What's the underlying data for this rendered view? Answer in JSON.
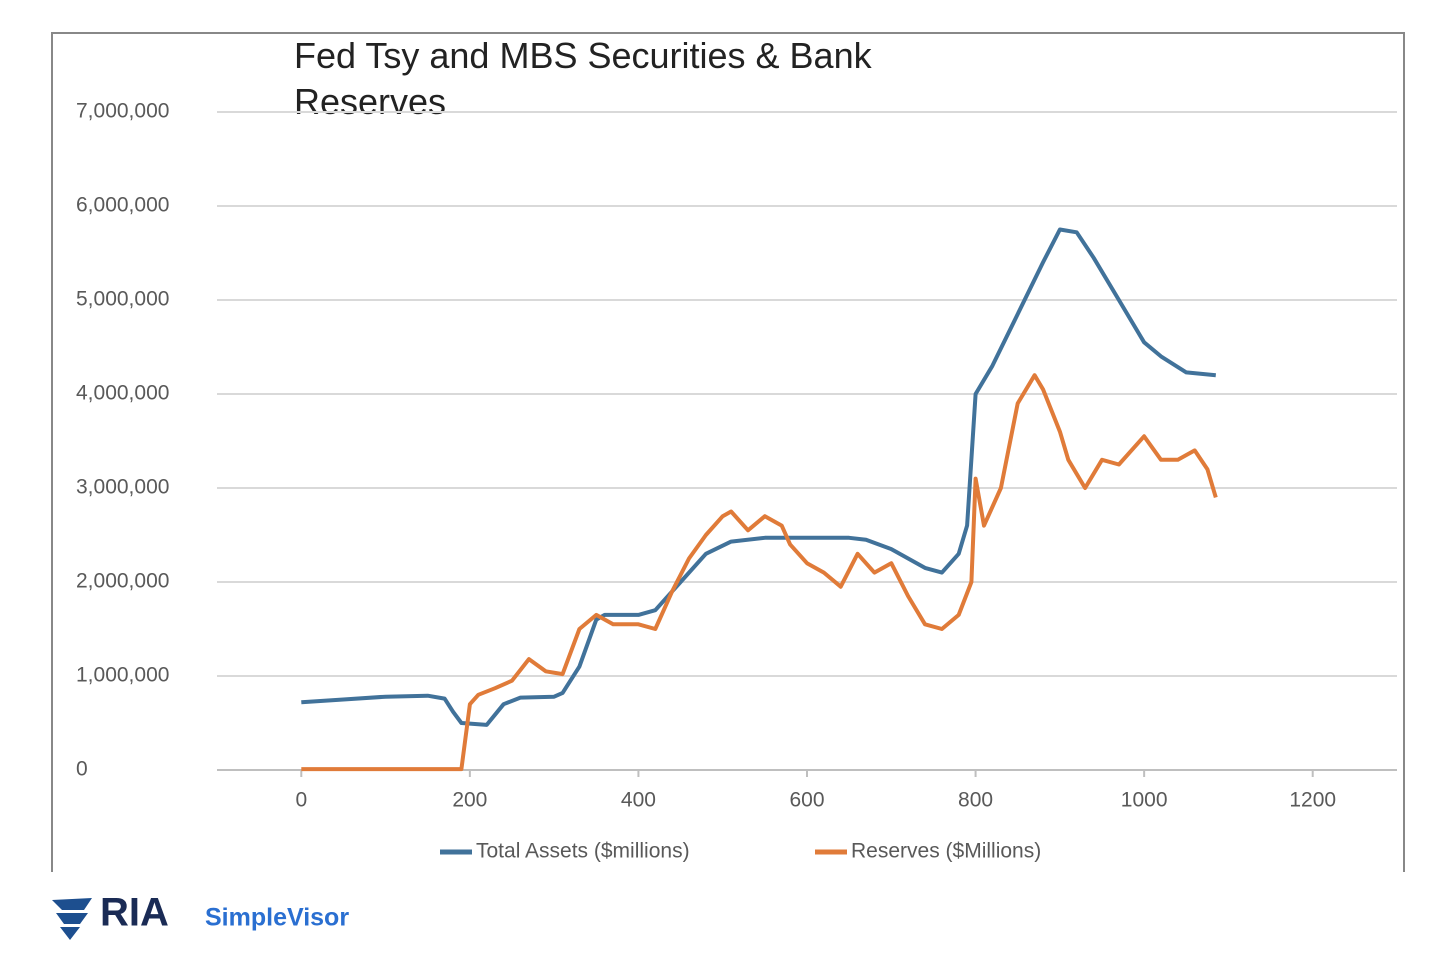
{
  "chart_data": {
    "type": "line",
    "title": "Fed Tsy and MBS Securities & Bank Reserves",
    "xlim": [
      -100,
      1300
    ],
    "xticks": [
      0,
      200,
      400,
      600,
      800,
      1000,
      1200
    ],
    "ylim": [
      0,
      7000000
    ],
    "yticks": [
      0,
      {
        "value": 1000000,
        "label": "1,000,000"
      },
      {
        "value": 2000000,
        "label": "2,000,000"
      },
      {
        "value": 3000000,
        "label": "3,000,000"
      },
      {
        "value": 4000000,
        "label": "4,000,000"
      },
      {
        "value": 5000000,
        "label": "5,000,000"
      },
      {
        "value": 6000000,
        "label": "6,000,000"
      },
      {
        "value": 7000000,
        "label": "7,000,000"
      }
    ],
    "grid": true,
    "legend": "bottom",
    "series": [
      {
        "name": "Total Assets ($millions)",
        "color": "#41729a",
        "x": [
          0,
          50,
          100,
          150,
          170,
          180,
          190,
          220,
          240,
          260,
          300,
          310,
          330,
          350,
          360,
          400,
          420,
          450,
          480,
          510,
          550,
          600,
          650,
          670,
          700,
          740,
          760,
          780,
          790,
          800,
          820,
          850,
          880,
          900,
          920,
          940,
          970,
          1000,
          1020,
          1050,
          1085
        ],
        "values": [
          720000,
          750000,
          780000,
          790000,
          760000,
          620000,
          500000,
          480000,
          700000,
          770000,
          780000,
          820000,
          1100000,
          1600000,
          1650000,
          1650000,
          1700000,
          2000000,
          2300000,
          2430000,
          2470000,
          2470000,
          2470000,
          2450000,
          2350000,
          2150000,
          2100000,
          2300000,
          2600000,
          4000000,
          4300000,
          4850000,
          5400000,
          5750000,
          5720000,
          5450000,
          5000000,
          4550000,
          4400000,
          4230000,
          4200000
        ]
      },
      {
        "name": "Reserves ($Millions)",
        "color": "#e07b39",
        "x": [
          0,
          190,
          200,
          210,
          230,
          250,
          270,
          290,
          310,
          330,
          350,
          370,
          400,
          420,
          440,
          460,
          480,
          500,
          510,
          530,
          550,
          570,
          580,
          600,
          620,
          640,
          660,
          680,
          700,
          720,
          740,
          760,
          780,
          795,
          800,
          810,
          830,
          850,
          870,
          880,
          900,
          910,
          930,
          950,
          970,
          990,
          1000,
          1020,
          1040,
          1060,
          1075,
          1085
        ],
        "values": [
          10000,
          10000,
          700000,
          800000,
          870000,
          950000,
          1180000,
          1050000,
          1020000,
          1500000,
          1650000,
          1550000,
          1550000,
          1500000,
          1900000,
          2250000,
          2500000,
          2700000,
          2750000,
          2550000,
          2700000,
          2600000,
          2400000,
          2200000,
          2100000,
          1950000,
          2300000,
          2100000,
          2200000,
          1850000,
          1550000,
          1500000,
          1650000,
          2000000,
          3100000,
          2600000,
          3000000,
          3900000,
          4200000,
          4050000,
          3600000,
          3300000,
          3000000,
          3300000,
          3250000,
          3450000,
          3550000,
          3300000,
          3300000,
          3400000,
          3200000,
          2900000
        ]
      }
    ]
  },
  "logo": {
    "brand": "RIA",
    "product": "SimpleVisor"
  }
}
